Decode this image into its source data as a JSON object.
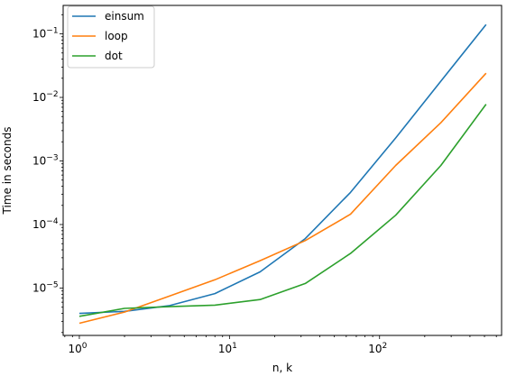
{
  "chart_data": {
    "type": "line",
    "xlabel": "n, k",
    "ylabel": "Time in seconds",
    "xscale": "log",
    "yscale": "log",
    "xlim": [
      0.78,
      650
    ],
    "ylim": [
      1.8e-06,
      0.28
    ],
    "legend_position": "top-left",
    "grid": false,
    "x_major_ticks": [
      {
        "value": 1,
        "base": "10",
        "exp": "0"
      },
      {
        "value": 10,
        "base": "10",
        "exp": "1"
      },
      {
        "value": 100,
        "base": "10",
        "exp": "2"
      }
    ],
    "y_major_ticks": [
      {
        "value": 1e-05,
        "base": "10",
        "exp": "−5"
      },
      {
        "value": 0.0001,
        "base": "10",
        "exp": "−4"
      },
      {
        "value": 0.001,
        "base": "10",
        "exp": "−3"
      },
      {
        "value": 0.01,
        "base": "10",
        "exp": "−2"
      },
      {
        "value": 0.1,
        "base": "10",
        "exp": "−1"
      }
    ],
    "x": [
      1,
      2,
      4,
      8,
      16,
      32,
      64,
      128,
      256,
      512
    ],
    "series": [
      {
        "name": "einsum",
        "color": "#1f77b4",
        "values": [
          4e-06,
          4.3e-06,
          5.3e-06,
          8.2e-06,
          1.8e-05,
          6e-05,
          0.00032,
          0.0023,
          0.018,
          0.14
        ]
      },
      {
        "name": "loop",
        "color": "#ff7f0e",
        "values": [
          2.8e-06,
          4.2e-06,
          7.5e-06,
          1.35e-05,
          2.7e-05,
          5.6e-05,
          0.000145,
          0.00085,
          0.004,
          0.024
        ]
      },
      {
        "name": "dot",
        "color": "#2ca02c",
        "values": [
          3.6e-06,
          4.8e-06,
          5.1e-06,
          5.4e-06,
          6.6e-06,
          1.18e-05,
          3.5e-05,
          0.00014,
          0.00085,
          0.0078
        ]
      }
    ]
  }
}
